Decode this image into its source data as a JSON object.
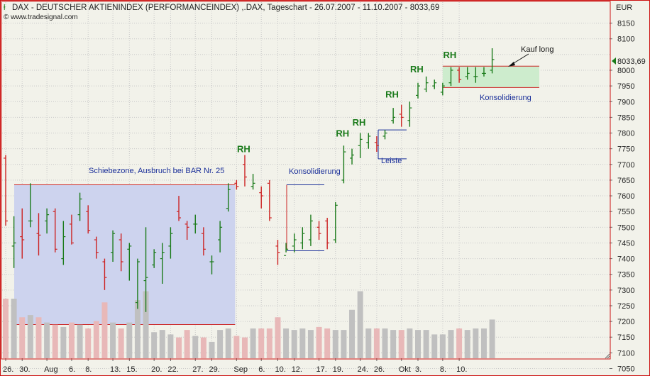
{
  "header": {
    "title": "DAX  - DEUTSCHER AKTIENINDEX (PERFORMANCEINDEX) ,.DAX, Tageschart - 26.07.2007 - 11.10.2007 - 8033,69",
    "copyright": "© www.tradesignal.com",
    "currency": "EUR",
    "last_price": "8033,69"
  },
  "colors": {
    "background": "#f2f2ea",
    "frame": "#cc1111",
    "up_bar": "#1a7a1a",
    "down_bar": "#cc2222",
    "volume_up": "#c0c0c0",
    "volume_down": "#e8b8b8",
    "zone_fill": "#cdd3ee",
    "consolidation_fill": "#cdeccd",
    "rh_label": "#1a7a1a"
  },
  "annotations": {
    "zone_label": "Schiebezone, Ausbruch bei BAR Nr. 25",
    "konsolidierung_1": "Konsolidierung",
    "konsolidierung_2": "Konsolidierung",
    "leiste": "Leiste",
    "kauf_long": "Kauf long",
    "rh": "RH"
  },
  "chart_data": {
    "type": "ohlc",
    "title": "DAX  - DEUTSCHER AKTIENINDEX (PERFORMANCEINDEX) ,.DAX, Tageschart - 26.07.2007 - 11.10.2007 - 8033,69",
    "ylabel": "EUR",
    "ylim": [
      7000,
      8200
    ],
    "y_ticks": [
      7050,
      7100,
      7150,
      7200,
      7250,
      7300,
      7350,
      7400,
      7450,
      7500,
      7550,
      7600,
      7650,
      7700,
      7750,
      7800,
      7850,
      7900,
      7950,
      8000,
      8050,
      8100,
      8150
    ],
    "x_tick_labels": [
      {
        "label": "26.",
        "bar": 1
      },
      {
        "label": "30.",
        "bar": 3
      },
      {
        "label": "Aug",
        "bar": 6
      },
      {
        "label": "6.",
        "bar": 9
      },
      {
        "label": "8.",
        "bar": 11
      },
      {
        "label": "13.",
        "bar": 14
      },
      {
        "label": "15.",
        "bar": 16
      },
      {
        "label": "20.",
        "bar": 19
      },
      {
        "label": "22.",
        "bar": 21
      },
      {
        "label": "27.",
        "bar": 24
      },
      {
        "label": "29.",
        "bar": 26
      },
      {
        "label": "Sep",
        "bar": 29
      },
      {
        "label": "6.",
        "bar": 32
      },
      {
        "label": "10.",
        "bar": 34
      },
      {
        "label": "12.",
        "bar": 36
      },
      {
        "label": "17.",
        "bar": 39
      },
      {
        "label": "19.",
        "bar": 41
      },
      {
        "label": "24.",
        "bar": 44
      },
      {
        "label": "26.",
        "bar": 46
      },
      {
        "label": "Okt",
        "bar": 49
      },
      {
        "label": "3.",
        "bar": 51
      },
      {
        "label": "8.",
        "bar": 54
      },
      {
        "label": "10.",
        "bar": 56
      }
    ],
    "bars": [
      {
        "o": 7720,
        "h": 7730,
        "l": 7505,
        "c": 7520
      },
      {
        "o": 7440,
        "h": 7535,
        "l": 7370,
        "c": 7450
      },
      {
        "o": 7470,
        "h": 7560,
        "l": 7400,
        "c": 7460
      },
      {
        "o": 7520,
        "h": 7640,
        "l": 7500,
        "c": 7520
      },
      {
        "o": 7480,
        "h": 7545,
        "l": 7410,
        "c": 7475
      },
      {
        "o": 7520,
        "h": 7560,
        "l": 7480,
        "c": 7540
      },
      {
        "o": 7550,
        "h": 7560,
        "l": 7420,
        "c": 7430
      },
      {
        "o": 7400,
        "h": 7520,
        "l": 7380,
        "c": 7470
      },
      {
        "o": 7510,
        "h": 7540,
        "l": 7445,
        "c": 7450
      },
      {
        "o": 7540,
        "h": 7610,
        "l": 7520,
        "c": 7590
      },
      {
        "o": 7550,
        "h": 7570,
        "l": 7480,
        "c": 7490
      },
      {
        "o": 7460,
        "h": 7470,
        "l": 7400,
        "c": 7420
      },
      {
        "o": 7390,
        "h": 7400,
        "l": 7300,
        "c": 7340
      },
      {
        "o": 7420,
        "h": 7490,
        "l": 7390,
        "c": 7480
      },
      {
        "o": 7460,
        "h": 7480,
        "l": 7360,
        "c": 7390
      },
      {
        "o": 7430,
        "h": 7450,
        "l": 7330,
        "c": 7440
      },
      {
        "o": 7260,
        "h": 7400,
        "l": 7240,
        "c": 7390
      },
      {
        "o": 7330,
        "h": 7500,
        "l": 7230,
        "c": 7340
      },
      {
        "o": 7380,
        "h": 7430,
        "l": 7370,
        "c": 7420
      },
      {
        "o": 7400,
        "h": 7450,
        "l": 7320,
        "c": 7420
      },
      {
        "o": 7440,
        "h": 7500,
        "l": 7400,
        "c": 7480
      },
      {
        "o": 7550,
        "h": 7600,
        "l": 7520,
        "c": 7530
      },
      {
        "o": 7510,
        "h": 7520,
        "l": 7460,
        "c": 7500
      },
      {
        "o": 7510,
        "h": 7540,
        "l": 7480,
        "c": 7510
      },
      {
        "o": 7480,
        "h": 7500,
        "l": 7410,
        "c": 7430
      },
      {
        "o": 7390,
        "h": 7410,
        "l": 7350,
        "c": 7390
      },
      {
        "o": 7460,
        "h": 7520,
        "l": 7420,
        "c": 7500
      },
      {
        "o": 7560,
        "h": 7640,
        "l": 7550,
        "c": 7620
      },
      {
        "o": 7640,
        "h": 7650,
        "l": 7620,
        "c": 7630
      },
      {
        "o": 7700,
        "h": 7730,
        "l": 7630,
        "c": 7660
      },
      {
        "o": 7630,
        "h": 7670,
        "l": 7620,
        "c": 7640
      },
      {
        "o": 7610,
        "h": 7630,
        "l": 7560,
        "c": 7600
      },
      {
        "o": 7640,
        "h": 7650,
        "l": 7520,
        "c": 7530
      },
      {
        "o": 7440,
        "h": 7460,
        "l": 7380,
        "c": 7420
      },
      {
        "o": 7410,
        "h": 7450,
        "l": 7420,
        "c": 7430
      },
      {
        "o": 7440,
        "h": 7480,
        "l": 7420,
        "c": 7460
      },
      {
        "o": 7450,
        "h": 7500,
        "l": 7430,
        "c": 7480
      },
      {
        "o": 7460,
        "h": 7540,
        "l": 7440,
        "c": 7520
      },
      {
        "o": 7500,
        "h": 7520,
        "l": 7460,
        "c": 7480
      },
      {
        "o": 7520,
        "h": 7530,
        "l": 7430,
        "c": 7450
      },
      {
        "o": 7460,
        "h": 7580,
        "l": 7450,
        "c": 7570
      },
      {
        "o": 7650,
        "h": 7760,
        "l": 7640,
        "c": 7740
      },
      {
        "o": 7720,
        "h": 7750,
        "l": 7700,
        "c": 7730
      },
      {
        "o": 7760,
        "h": 7800,
        "l": 7720,
        "c": 7780
      },
      {
        "o": 7770,
        "h": 7800,
        "l": 7750,
        "c": 7790
      },
      {
        "o": 7770,
        "h": 7790,
        "l": 7740,
        "c": 7760
      },
      {
        "o": 7790,
        "h": 7810,
        "l": 7780,
        "c": 7800
      },
      {
        "o": 7840,
        "h": 7880,
        "l": 7830,
        "c": 7850
      },
      {
        "o": 7860,
        "h": 7890,
        "l": 7820,
        "c": 7850
      },
      {
        "o": 7840,
        "h": 7900,
        "l": 7820,
        "c": 7880
      },
      {
        "o": 7920,
        "h": 7960,
        "l": 7910,
        "c": 7950
      },
      {
        "o": 7940,
        "h": 7980,
        "l": 7930,
        "c": 7960
      },
      {
        "o": 7950,
        "h": 7970,
        "l": 7940,
        "c": 7960
      },
      {
        "o": 7930,
        "h": 7960,
        "l": 7920,
        "c": 7950
      },
      {
        "o": 7960,
        "h": 8010,
        "l": 7950,
        "c": 8000
      },
      {
        "o": 8000,
        "h": 8010,
        "l": 7960,
        "c": 7970
      },
      {
        "o": 7980,
        "h": 8010,
        "l": 7970,
        "c": 7990
      },
      {
        "o": 7980,
        "h": 8010,
        "l": 7960,
        "c": 7980
      },
      {
        "o": 7990,
        "h": 8010,
        "l": 7980,
        "c": 7990
      },
      {
        "o": 8000,
        "h": 8070,
        "l": 7990,
        "c": 8034
      }
    ],
    "volume_relative": [
      0.8,
      0.8,
      0.55,
      0.58,
      0.55,
      0.48,
      0.45,
      0.42,
      0.48,
      0.45,
      0.4,
      0.5,
      0.75,
      0.48,
      0.4,
      0.48,
      0.78,
      0.9,
      0.35,
      0.38,
      0.32,
      0.28,
      0.38,
      0.3,
      0.28,
      0.22,
      0.38,
      0.4,
      0.3,
      0.28,
      0.4,
      0.4,
      0.4,
      0.55,
      0.4,
      0.38,
      0.4,
      0.38,
      0.42,
      0.4,
      0.38,
      0.38,
      0.65,
      0.9,
      0.4,
      0.4,
      0.4,
      0.38,
      0.38,
      0.4,
      0.38,
      0.38,
      0.32,
      0.32,
      0.38,
      0.4,
      0.38,
      0.4,
      0.4,
      0.52
    ],
    "zones": [
      {
        "name": "Schiebezone",
        "y_top": 7635,
        "y_bottom": 7190,
        "from_bar": 1,
        "to_bar": 29
      },
      {
        "name": "Konsolidierung",
        "y_top": 8013,
        "y_bottom": 7945,
        "from_bar": 54,
        "to_bar": 60
      }
    ],
    "rh_marks": [
      {
        "bar": 30,
        "value": 7725
      },
      {
        "bar": 42,
        "value": 7775
      },
      {
        "bar": 44,
        "value": 7810
      },
      {
        "bar": 48,
        "value": 7900
      },
      {
        "bar": 51,
        "value": 7980
      },
      {
        "bar": 55,
        "value": 8025
      }
    ],
    "grid": true
  }
}
